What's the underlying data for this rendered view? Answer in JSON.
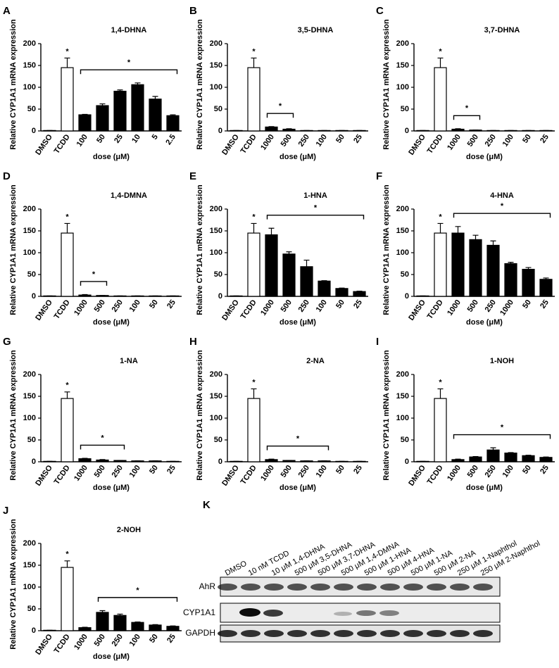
{
  "chart_data": [
    {
      "type": "bar",
      "panel": "A",
      "title": "1,4-DHNA",
      "ylabel": "Relative CYP1A1 mRNA expression",
      "xlabel": "dose (μM)",
      "categories": [
        "DMSO",
        "TCDD",
        "100",
        "50",
        "25",
        "10",
        "5",
        "2.5"
      ],
      "values": [
        1,
        145,
        37,
        58,
        91,
        106,
        73,
        35
      ],
      "errors": [
        0,
        22,
        1,
        4,
        3,
        4,
        6,
        2
      ],
      "colors": [
        "#ffffff",
        "#ffffff",
        "#000000",
        "#000000",
        "#000000",
        "#000000",
        "#000000",
        "#000000"
      ],
      "ylim": [
        0,
        200
      ],
      "yticks": [
        0,
        50,
        100,
        150,
        200
      ],
      "annotations": [
        {
          "category": 1,
          "label": "*"
        }
      ],
      "bracket": {
        "from": 2,
        "to": 7,
        "label": "*"
      }
    },
    {
      "type": "bar",
      "panel": "B",
      "title": "3,5-DHNA",
      "ylabel": "Relative CYP1A1 mRNA expression",
      "xlabel": "dose (μM)",
      "categories": [
        "DMSO",
        "TCDD",
        "1000",
        "500",
        "250",
        "100",
        "50",
        "25"
      ],
      "values": [
        1,
        145,
        9,
        4,
        1,
        1,
        1,
        1
      ],
      "errors": [
        0,
        22,
        1,
        1,
        0,
        0,
        0,
        0
      ],
      "colors": [
        "#ffffff",
        "#ffffff",
        "#000000",
        "#000000",
        "#000000",
        "#000000",
        "#000000",
        "#000000"
      ],
      "ylim": [
        0,
        200
      ],
      "yticks": [
        0,
        50,
        100,
        150,
        200
      ],
      "annotations": [
        {
          "category": 1,
          "label": "*"
        }
      ],
      "bracket": {
        "from": 2,
        "to": 3,
        "label": "*"
      }
    },
    {
      "type": "bar",
      "panel": "C",
      "title": "3,7-DHNA",
      "ylabel": "Relative CYP1A1 mRNA expression",
      "xlabel": "dose (μM)",
      "categories": [
        "DMSO",
        "TCDD",
        "1000",
        "500",
        "250",
        "100",
        "50",
        "25"
      ],
      "values": [
        1,
        145,
        4,
        2,
        1,
        1,
        1,
        1
      ],
      "errors": [
        0,
        22,
        1,
        0,
        0,
        0,
        0,
        0
      ],
      "colors": [
        "#ffffff",
        "#ffffff",
        "#000000",
        "#000000",
        "#000000",
        "#000000",
        "#000000",
        "#000000"
      ],
      "ylim": [
        0,
        200
      ],
      "yticks": [
        0,
        50,
        100,
        150,
        200
      ],
      "annotations": [
        {
          "category": 1,
          "label": "*"
        }
      ],
      "bracket": {
        "from": 2,
        "to": 3,
        "label": "*"
      }
    },
    {
      "type": "bar",
      "panel": "D",
      "title": "1,4-DMNA",
      "ylabel": "Relative CYP1A1 mRNA expression",
      "xlabel": "dose (μM)",
      "categories": [
        "DMSO",
        "TCDD",
        "1000",
        "500",
        "250",
        "100",
        "50",
        "25"
      ],
      "values": [
        1,
        145,
        3,
        2,
        1,
        1,
        1,
        1
      ],
      "errors": [
        0,
        22,
        1,
        0,
        0,
        0,
        0,
        0
      ],
      "colors": [
        "#ffffff",
        "#ffffff",
        "#000000",
        "#000000",
        "#000000",
        "#000000",
        "#000000",
        "#000000"
      ],
      "ylim": [
        0,
        200
      ],
      "yticks": [
        0,
        50,
        100,
        150,
        200
      ],
      "annotations": [
        {
          "category": 1,
          "label": "*"
        }
      ],
      "bracket": {
        "from": 2,
        "to": 3,
        "label": "*"
      }
    },
    {
      "type": "bar",
      "panel": "E",
      "title": "1-HNA",
      "ylabel": "Relative CYP1A1 mRNA expression",
      "xlabel": "dose (μM)",
      "categories": [
        "DMSO",
        "TCDD",
        "1000",
        "500",
        "250",
        "100",
        "50",
        "25"
      ],
      "values": [
        1,
        145,
        141,
        97,
        68,
        35,
        18,
        11
      ],
      "errors": [
        0,
        22,
        15,
        5,
        15,
        1,
        1,
        1
      ],
      "colors": [
        "#ffffff",
        "#ffffff",
        "#000000",
        "#000000",
        "#000000",
        "#000000",
        "#000000",
        "#000000"
      ],
      "ylim": [
        0,
        200
      ],
      "yticks": [
        0,
        50,
        100,
        150,
        200
      ],
      "annotations": [
        {
          "category": 1,
          "label": "*"
        }
      ],
      "bracket": {
        "from": 2,
        "to": 7,
        "label": "*"
      }
    },
    {
      "type": "bar",
      "panel": "F",
      "title": "4-HNA",
      "ylabel": "Relative CYP1A1 mRNA expression",
      "xlabel": "dose (μM)",
      "categories": [
        "DMSO",
        "TCDD",
        "1000",
        "500",
        "250",
        "1000",
        "50",
        "25"
      ],
      "values": [
        1,
        145,
        145,
        130,
        117,
        75,
        62,
        39
      ],
      "errors": [
        0,
        22,
        15,
        10,
        10,
        3,
        4,
        3
      ],
      "colors": [
        "#ffffff",
        "#ffffff",
        "#000000",
        "#000000",
        "#000000",
        "#000000",
        "#000000",
        "#000000"
      ],
      "ylim": [
        0,
        200
      ],
      "yticks": [
        0,
        50,
        100,
        150,
        200
      ],
      "annotations": [
        {
          "category": 1,
          "label": "*"
        }
      ],
      "bracket": {
        "from": 2,
        "to": 7,
        "label": "*"
      }
    },
    {
      "type": "bar",
      "panel": "G",
      "title": "1-NA",
      "ylabel": "Relative CYP1A1 mRNA expression",
      "xlabel": "dose (μM)",
      "categories": [
        "DMSO",
        "TCDD",
        "1000",
        "500",
        "250",
        "100",
        "50",
        "25"
      ],
      "values": [
        1,
        145,
        7,
        4,
        3,
        2,
        2,
        1
      ],
      "errors": [
        0,
        15,
        1,
        1,
        0,
        0,
        0,
        0
      ],
      "colors": [
        "#ffffff",
        "#ffffff",
        "#000000",
        "#000000",
        "#000000",
        "#000000",
        "#000000",
        "#000000"
      ],
      "ylim": [
        0,
        200
      ],
      "yticks": [
        0,
        50,
        100,
        150,
        200
      ],
      "annotations": [
        {
          "category": 1,
          "label": "*"
        }
      ],
      "bracket": {
        "from": 2,
        "to": 4,
        "label": "*"
      }
    },
    {
      "type": "bar",
      "panel": "H",
      "title": "2-NA",
      "ylabel": "Relative CYP1A1 mRNA expression",
      "xlabel": "dose (μM)",
      "categories": [
        "DMSO",
        "TCDD",
        "1000",
        "500",
        "250",
        "100",
        "50",
        "25"
      ],
      "values": [
        1,
        145,
        5,
        3,
        2,
        2,
        1,
        1
      ],
      "errors": [
        0,
        22,
        1,
        0,
        0,
        0,
        0,
        0
      ],
      "colors": [
        "#ffffff",
        "#ffffff",
        "#000000",
        "#000000",
        "#000000",
        "#000000",
        "#000000",
        "#000000"
      ],
      "ylim": [
        0,
        200
      ],
      "yticks": [
        0,
        50,
        100,
        150,
        200
      ],
      "annotations": [
        {
          "category": 1,
          "label": "*"
        }
      ],
      "bracket": {
        "from": 2,
        "to": 5,
        "label": "*"
      }
    },
    {
      "type": "bar",
      "panel": "I",
      "title": "1-NOH",
      "ylabel": "Relative CYP1A1 mRNA expression",
      "xlabel": "dose (μM)",
      "categories": [
        "DMSO",
        "TCDD",
        "1000",
        "500",
        "250",
        "100",
        "50",
        "25"
      ],
      "values": [
        1,
        145,
        5,
        11,
        27,
        20,
        14,
        10
      ],
      "errors": [
        0,
        22,
        1,
        1,
        5,
        1,
        1,
        1
      ],
      "colors": [
        "#ffffff",
        "#ffffff",
        "#000000",
        "#000000",
        "#000000",
        "#000000",
        "#000000",
        "#000000"
      ],
      "ylim": [
        0,
        200
      ],
      "yticks": [
        0,
        50,
        100,
        150,
        200
      ],
      "annotations": [
        {
          "category": 1,
          "label": "*"
        }
      ],
      "bracket": {
        "from": 2,
        "to": 7,
        "label": "*"
      }
    },
    {
      "type": "bar",
      "panel": "J",
      "title": "2-NOH",
      "ylabel": "Relative CYP1A1 mRNA expression",
      "xlabel": "dose (μM)",
      "categories": [
        "DMSO",
        "TCDD",
        "1000",
        "500",
        "250",
        "100",
        "50",
        "25"
      ],
      "values": [
        1,
        145,
        7,
        42,
        35,
        19,
        13,
        10
      ],
      "errors": [
        0,
        15,
        1,
        4,
        3,
        1,
        1,
        1
      ],
      "colors": [
        "#ffffff",
        "#ffffff",
        "#000000",
        "#000000",
        "#000000",
        "#000000",
        "#000000",
        "#000000"
      ],
      "ylim": [
        0,
        200
      ],
      "yticks": [
        0,
        50,
        100,
        150,
        200
      ],
      "annotations": [
        {
          "category": 1,
          "label": "*"
        }
      ],
      "bracket": {
        "from": 3,
        "to": 7,
        "label": "*"
      }
    }
  ],
  "blot": {
    "panel": "K",
    "lanes": [
      "DMSO",
      "10 nM TCDD",
      "10 μM 1,4-DHNA",
      "500 μM 3,5-DHNA",
      "500 μM 3,7-DHNA",
      "500 μM 1,4-DMNA",
      "500 μM 1-HNA",
      "500 μM 4-HNA",
      "500 μM 1-NA",
      "500 μM 2-NA",
      "250 μM 1-Naphthol",
      "250 μM 2-Naphthol"
    ],
    "rows": [
      "AhR",
      "CYP1A1",
      "GAPDH"
    ]
  }
}
